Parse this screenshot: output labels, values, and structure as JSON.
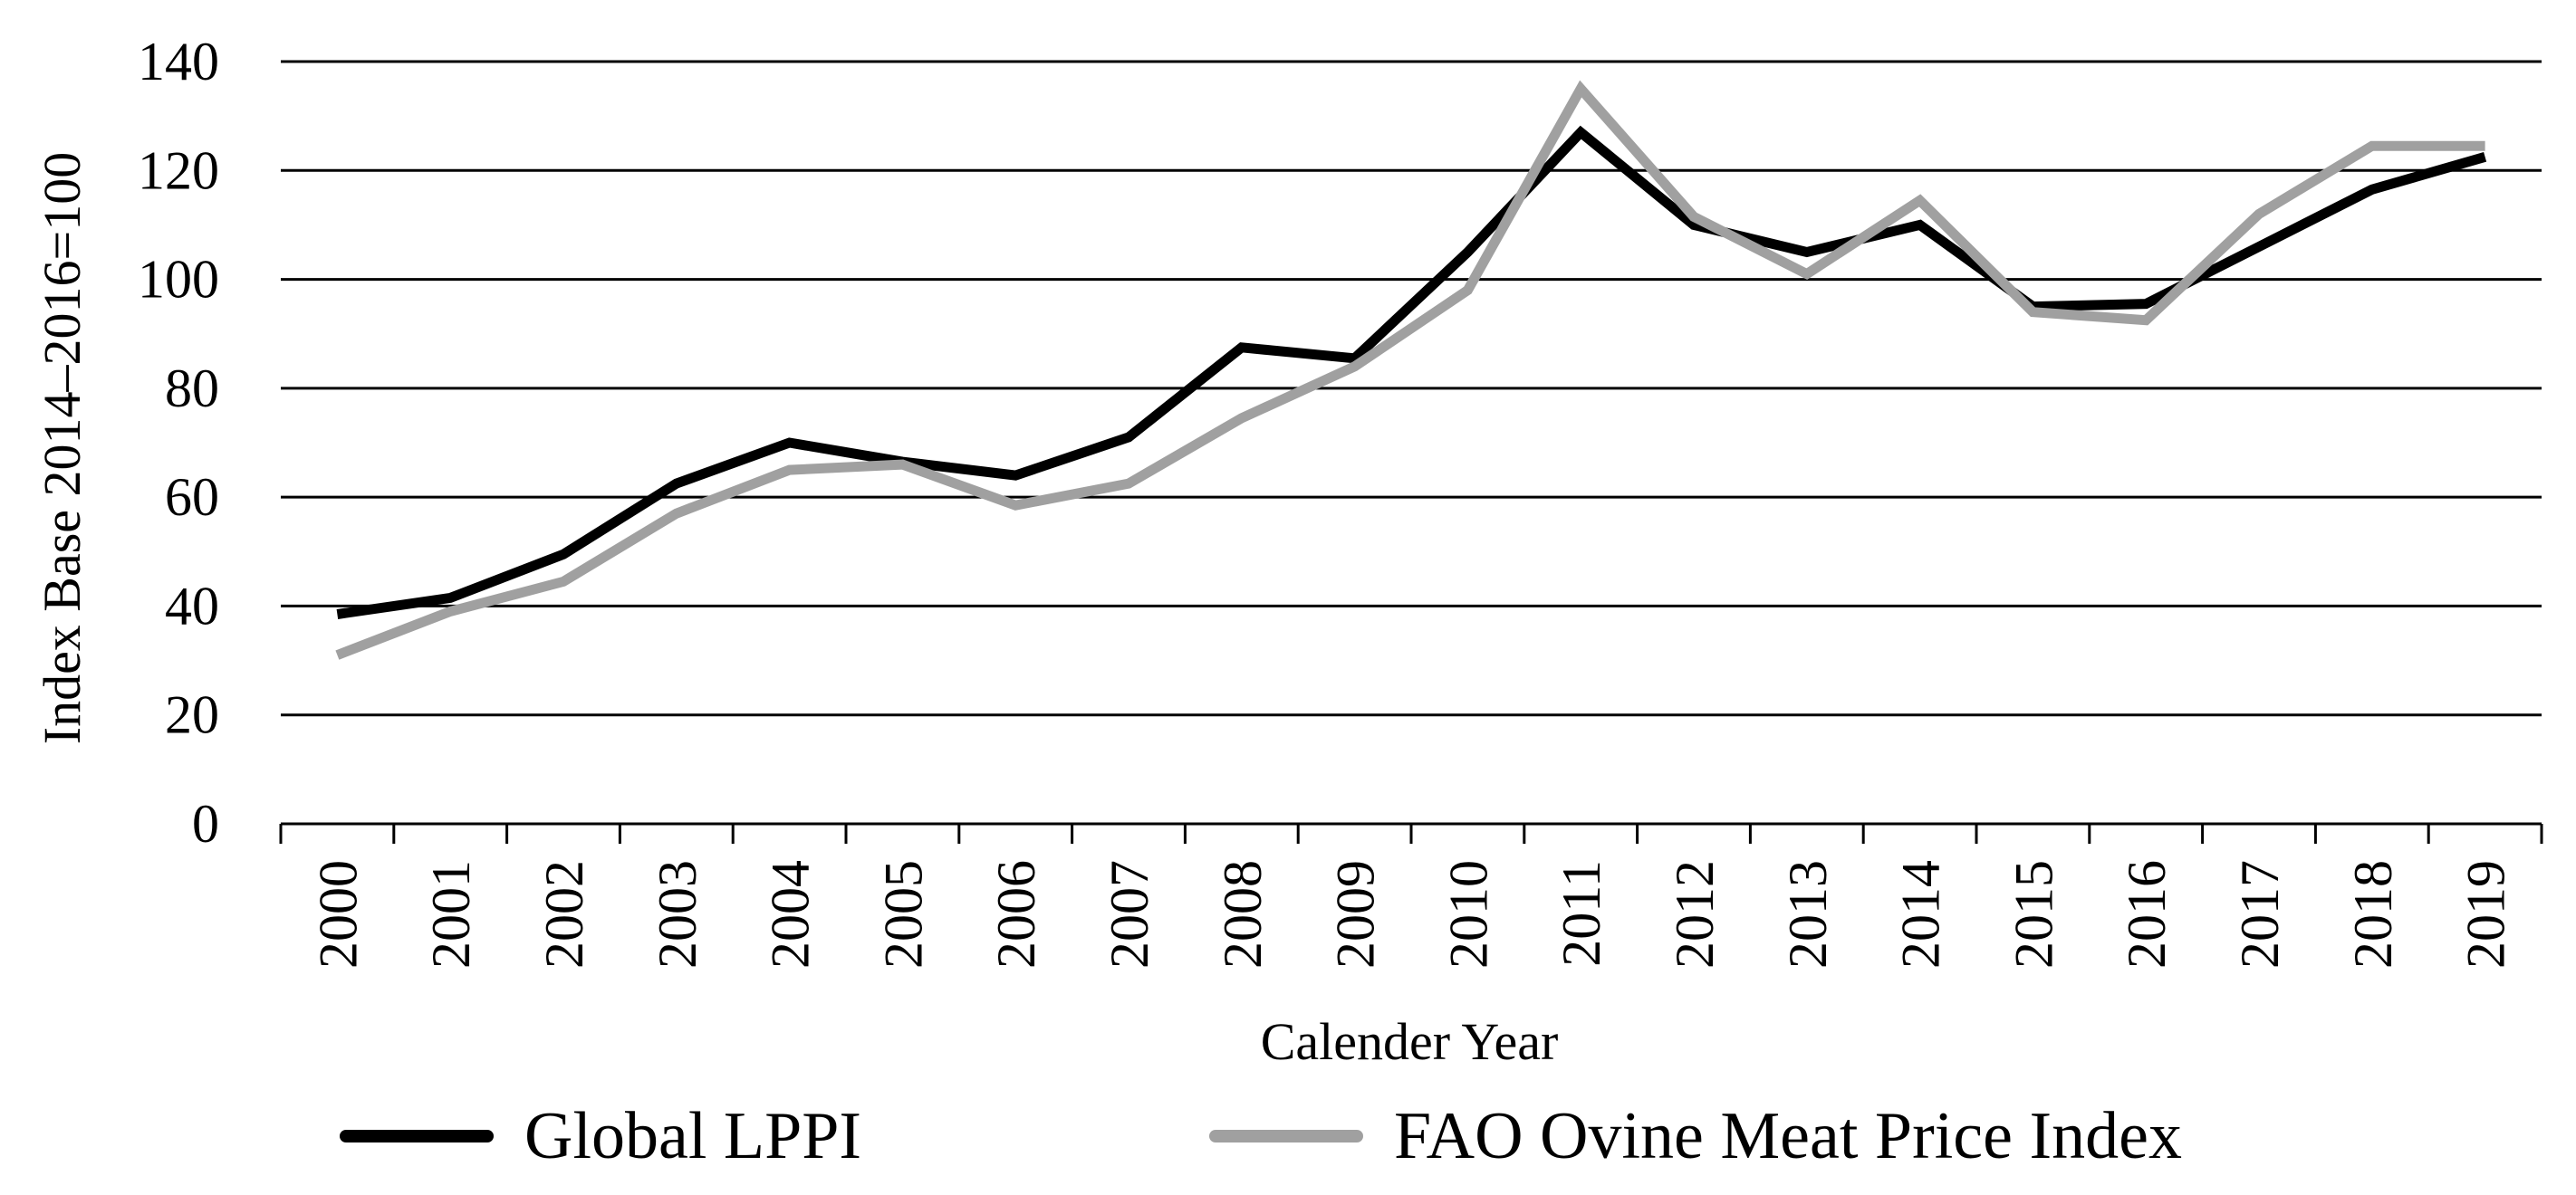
{
  "chart_data": {
    "type": "line",
    "title": "",
    "xlabel": "Calender Year",
    "ylabel": "Index Base 2014–2016=100",
    "ylim": [
      0,
      140
    ],
    "yticks": [
      "0",
      "20",
      "40",
      "60",
      "80",
      "100",
      "120",
      "140"
    ],
    "categories": [
      "2000",
      "2001",
      "2002",
      "2003",
      "2004",
      "2005",
      "2006",
      "2007",
      "2008",
      "2009",
      "2010",
      "2011",
      "2012",
      "2013",
      "2014",
      "2015",
      "2016",
      "2017",
      "2018",
      "2019"
    ],
    "grid": true,
    "legend_position": "bottom",
    "series": [
      {
        "name": "Global LPPI",
        "color": "#000000",
        "values": [
          38.5,
          41.5,
          49.5,
          62.5,
          70,
          66.5,
          64,
          71,
          87.5,
          85.5,
          105,
          127,
          110,
          105,
          110,
          95,
          95.5,
          106,
          116.5,
          122.5
        ]
      },
      {
        "name": "FAO Ovine Meat Price Index",
        "color": "#a0a0a0",
        "values": [
          31,
          39,
          44.5,
          57,
          65,
          66,
          58.5,
          62.5,
          74.5,
          84,
          98,
          135,
          111.5,
          101,
          114.5,
          94,
          92.5,
          112,
          124.5,
          124.5
        ]
      }
    ]
  }
}
